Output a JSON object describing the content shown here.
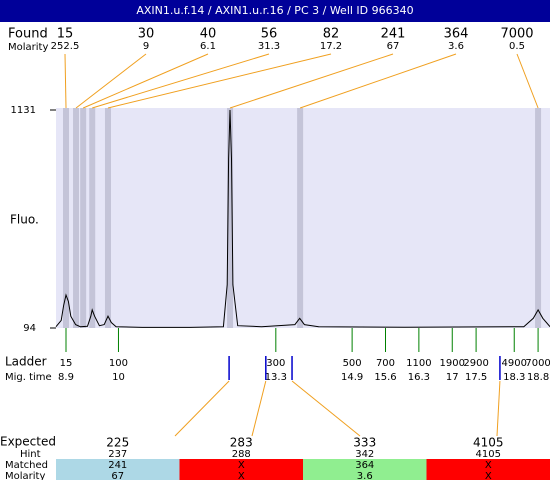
{
  "header": {
    "title": "AXIN1.u.f.14 / AXIN1.u.r.16 / PC 3 / Well ID 966340"
  },
  "found": {
    "label": "Found",
    "molarity_label": "Molarity",
    "sizes": [
      15,
      30,
      40,
      56,
      82,
      241,
      364,
      7000
    ],
    "molarity": [
      252.5,
      9,
      6.1,
      31.3,
      17.2,
      67,
      3.6,
      0.5
    ],
    "mig_times": [
      8.9,
      9.11,
      9.26,
      9.45,
      9.78,
      12.34,
      13.81,
      18.8
    ]
  },
  "plot": {
    "ylabel": "Fluo.",
    "xlim": [
      8.69,
      19.05
    ],
    "ylim": [
      94,
      1131
    ],
    "yticks": [
      94,
      1131
    ],
    "trace": {
      "x": [
        8.69,
        8.8,
        8.85,
        8.9,
        8.95,
        9.0,
        9.1,
        9.2,
        9.35,
        9.42,
        9.45,
        9.5,
        9.6,
        9.7,
        9.78,
        9.85,
        9.95,
        10.5,
        11.5,
        12.2,
        12.28,
        12.31,
        12.34,
        12.37,
        12.4,
        12.5,
        13.0,
        13.7,
        13.8,
        13.9,
        14.2,
        16.0,
        18.5,
        18.7,
        18.8,
        18.9,
        19.05
      ],
      "values": [
        100,
        130,
        200,
        251,
        220,
        150,
        110,
        100,
        102,
        150,
        180,
        150,
        105,
        110,
        150,
        120,
        100,
        97,
        97,
        100,
        300,
        900,
        1131,
        900,
        300,
        105,
        100,
        110,
        140,
        110,
        100,
        98,
        100,
        140,
        180,
        140,
        100
      ]
    }
  },
  "ladder": {
    "label": "Ladder",
    "time_label": "Mig. time",
    "sizes": [
      15,
      100,
      300,
      500,
      700,
      1100,
      1900,
      2900,
      4900,
      7000
    ],
    "mig_times": [
      8.9,
      10,
      13.3,
      14.9,
      15.6,
      16.3,
      17,
      17.5,
      18.3,
      18.8
    ]
  },
  "expected": {
    "label": "Expected",
    "hint_label": "Hint",
    "matched_label": "Matched",
    "molarity_label": "Molarity",
    "sizes": [
      225,
      283,
      333,
      4105
    ],
    "hints": [
      237,
      288,
      342,
      4105
    ],
    "matched": [
      241,
      "X",
      364,
      "X"
    ],
    "molarity": [
      67,
      "X",
      3.6,
      "X"
    ],
    "colors": [
      "#add8e6",
      "#ff0000",
      "#90ee90",
      "#ff0000"
    ],
    "mig_times": [
      12.32,
      13.09,
      13.64,
      18.0
    ]
  }
}
